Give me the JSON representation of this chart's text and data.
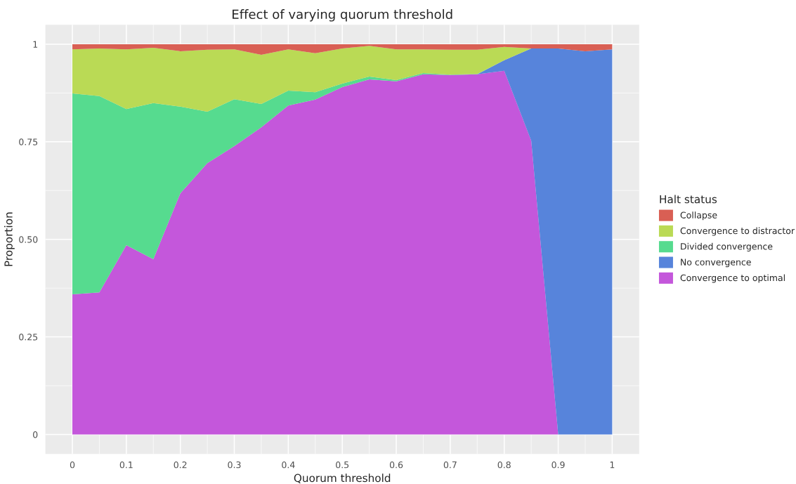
{
  "chart_data": {
    "type": "area",
    "stacked": true,
    "title": "Effect of varying quorum threshold",
    "xlabel": "Quorum threshold",
    "ylabel": "Proportion",
    "legend_title": "Halt status",
    "legend": "right",
    "grid": true,
    "x": [
      0,
      0.05,
      0.1,
      0.15,
      0.2,
      0.25,
      0.3,
      0.35,
      0.4,
      0.45,
      0.5,
      0.55,
      0.6,
      0.65,
      0.7,
      0.75,
      0.8,
      0.85,
      0.9,
      0.95,
      1
    ],
    "series": [
      {
        "name": "Convergence to optimal",
        "color": "#c457db",
        "values": [
          0.359,
          0.364,
          0.485,
          0.449,
          0.618,
          0.695,
          0.739,
          0.787,
          0.843,
          0.858,
          0.89,
          0.91,
          0.905,
          0.923,
          0.921,
          0.923,
          0.932,
          0.753,
          0,
          0,
          0
        ]
      },
      {
        "name": "No convergence",
        "color": "#5784db",
        "values": [
          0,
          0,
          0,
          0,
          0,
          0,
          0,
          0,
          0,
          0,
          0,
          0,
          0,
          0,
          0,
          0,
          0.027,
          0.236,
          0.989,
          0.982,
          0.987
        ]
      },
      {
        "name": "Divided convergence",
        "color": "#56db8f",
        "values": [
          0.515,
          0.503,
          0.349,
          0.4,
          0.222,
          0.132,
          0.12,
          0.06,
          0.038,
          0.019,
          0.009,
          0.007,
          0.003,
          0.003,
          0.001,
          0.001,
          0,
          0,
          0,
          0,
          0
        ]
      },
      {
        "name": "Convergence to distractor",
        "color": "#bada55",
        "values": [
          0.113,
          0.122,
          0.153,
          0.142,
          0.142,
          0.159,
          0.128,
          0.126,
          0.106,
          0.1,
          0.09,
          0.079,
          0.079,
          0.061,
          0.064,
          0.062,
          0.034,
          0,
          0,
          0,
          0
        ]
      },
      {
        "name": "Collapse",
        "color": "#d95f54",
        "values": [
          0.013,
          0.011,
          0.013,
          0.009,
          0.018,
          0.014,
          0.013,
          0.027,
          0.013,
          0.023,
          0.011,
          0.004,
          0.013,
          0.013,
          0.014,
          0.014,
          0.007,
          0.011,
          0.011,
          0.018,
          0.013
        ]
      }
    ],
    "xlim": [
      -0.05,
      1.05
    ],
    "ylim": [
      -0.05,
      1.05
    ],
    "xticks": [
      0,
      0.1,
      0.2,
      0.3,
      0.4,
      0.5,
      0.6,
      0.7,
      0.8,
      0.9,
      1
    ],
    "yticks": [
      0,
      0.25,
      {
        "value": 0.5,
        "label": "0.50"
      },
      0.75,
      1
    ]
  }
}
